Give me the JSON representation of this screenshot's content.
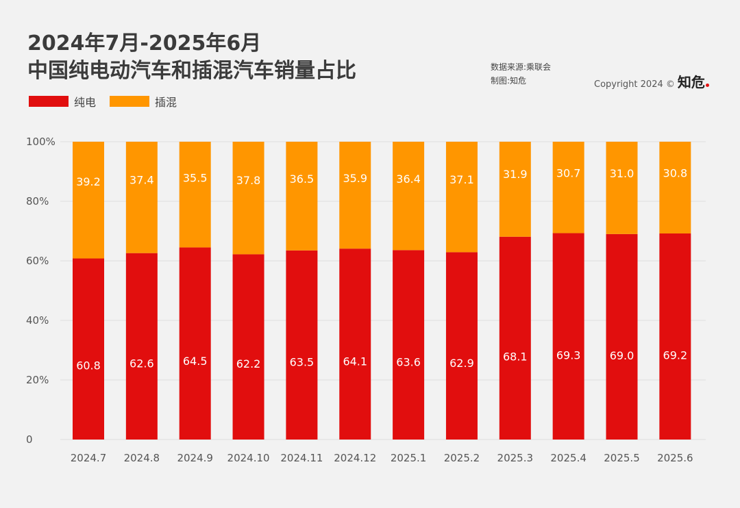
{
  "header": {
    "title_line1": "2024年7月-2025年6月",
    "title_line2": "中国纯电动汽车和插混汽车销量占比",
    "source": "数据来源:乘联会",
    "made_by": "制图:知危",
    "copyright": "Copyright 2024 ©",
    "logo": "知危"
  },
  "colors": {
    "bev": "#e10e0e",
    "phev": "#ff9600",
    "background": "#f2f2f2",
    "grid": "#dddddd"
  },
  "chart_data": {
    "type": "bar",
    "stacked": true,
    "categories": [
      "2024.7",
      "2024.8",
      "2024.9",
      "2024.10",
      "2024.11",
      "2024.12",
      "2025.1",
      "2025.2",
      "2025.3",
      "2025.4",
      "2025.5",
      "2025.6"
    ],
    "series": [
      {
        "name": "纯电",
        "color": "#e10e0e",
        "values": [
          60.8,
          62.6,
          64.5,
          62.2,
          63.5,
          64.1,
          63.6,
          62.9,
          68.1,
          69.3,
          69.0,
          69.2
        ],
        "labels": [
          "60.8",
          "62.6",
          "64.5",
          "62.2",
          "63.5",
          "64.1",
          "63.6",
          "62.9",
          "68.1",
          "69.3",
          "69.0",
          "69.2"
        ]
      },
      {
        "name": "插混",
        "color": "#ff9600",
        "values": [
          39.2,
          37.4,
          35.5,
          37.8,
          36.5,
          35.9,
          36.4,
          37.1,
          31.9,
          30.7,
          31.0,
          30.8
        ],
        "labels": [
          "39.2",
          "37.4",
          "35.5",
          "37.8",
          "36.5",
          "35.9",
          "36.4",
          "37.1",
          "31.9",
          "30.7",
          "31.0",
          "30.8"
        ]
      }
    ],
    "yticks": [
      "0",
      "20%",
      "40%",
      "60%",
      "80%",
      "100%"
    ],
    "ylim": [
      0,
      100
    ],
    "grid": true,
    "legend": "top-left"
  }
}
